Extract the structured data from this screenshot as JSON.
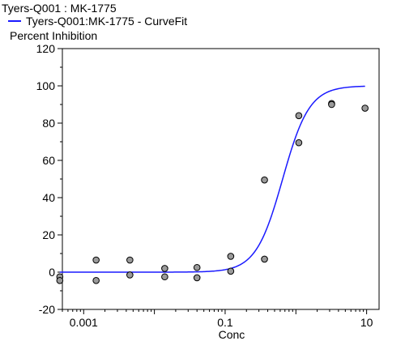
{
  "chart_data": {
    "type": "scatter",
    "title": "Tyers-Q001  :  MK-1775",
    "legend": [
      {
        "label": "Tyers-Q001:MK-1775 - CurveFit",
        "color": "#1a1aff",
        "marker": "line"
      }
    ],
    "xlabel": "Conc",
    "ylabel": "Percent Inhibition",
    "xscale": "log",
    "xlim": [
      0.0005,
      15
    ],
    "ylim": [
      -20,
      120
    ],
    "xticks": [
      0.001,
      0.1,
      10
    ],
    "xtick_labels": [
      "0.001",
      "0.1",
      "10"
    ],
    "yticks": [
      -20,
      0,
      20,
      40,
      60,
      80,
      100,
      120
    ],
    "ytick_labels": [
      "-20",
      "0",
      "20",
      "40",
      "60",
      "80",
      "100",
      "120"
    ],
    "grid": false,
    "points": {
      "x": [
        0.00046,
        0.00046,
        0.0015,
        0.0015,
        0.0045,
        0.0045,
        0.014,
        0.014,
        0.04,
        0.04,
        0.12,
        0.12,
        0.36,
        0.36,
        1.1,
        1.1,
        3.2,
        3.2,
        9.5
      ],
      "y": [
        -2.5,
        -4.5,
        6.5,
        -4.5,
        6.5,
        -1.5,
        2,
        -2.5,
        2.5,
        -3,
        8.5,
        0.5,
        49.5,
        7,
        84,
        69.5,
        90.5,
        90,
        88
      ],
      "marker_fill": "#9a9a9a",
      "marker_edge": "#000000"
    },
    "curve": {
      "name": "Tyers-Q001:MK-1775 - CurveFit",
      "model": "4PL",
      "bottom": 0,
      "top": 100,
      "ic50": 0.65,
      "hill": 2.3,
      "x_range": [
        0.00046,
        9.5
      ],
      "color": "#1a1aff"
    }
  }
}
